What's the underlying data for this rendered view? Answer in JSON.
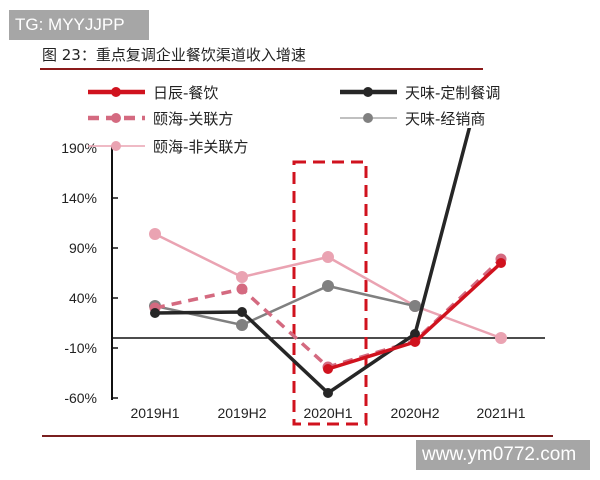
{
  "watermarks": {
    "top": "TG: MYYJJPP",
    "bottom": "www.ym0772.com"
  },
  "chart_data": {
    "type": "line",
    "title": "图 23：重点复调企业餐饮渠道收入增速",
    "xlabel": "",
    "ylabel": "",
    "categories": [
      "2019H1",
      "2019H2",
      "2020H1",
      "2020H2",
      "2021H1"
    ],
    "ylim": [
      -60,
      190
    ],
    "yticks": [
      "190%",
      "140%",
      "90%",
      "40%",
      "-10%",
      "-60%"
    ],
    "ytick_values": [
      190,
      140,
      90,
      40,
      -10,
      -60
    ],
    "grid": false,
    "legend_position": "top",
    "highlight_category": "2020H1",
    "series": [
      {
        "name": "日辰-餐饮",
        "color": "#d0121e",
        "style": "solid-thick",
        "values": [
          null,
          null,
          -31,
          -4,
          75
        ]
      },
      {
        "name": "天味-定制餐调",
        "color": "#262626",
        "style": "solid-thick",
        "values": [
          25,
          26,
          -55,
          4,
          330
        ]
      },
      {
        "name": "颐海-关联方",
        "color": "#d46a80",
        "style": "dashed",
        "values": [
          30,
          49,
          -29,
          -3,
          79
        ]
      },
      {
        "name": "天味-经销商",
        "color": "#808080",
        "style": "solid",
        "values": [
          32,
          13,
          52,
          32,
          null
        ]
      },
      {
        "name": "颐海-非关联方",
        "color": "#eaa3b2",
        "style": "solid",
        "values": [
          104,
          61,
          81,
          32,
          0
        ]
      }
    ]
  }
}
